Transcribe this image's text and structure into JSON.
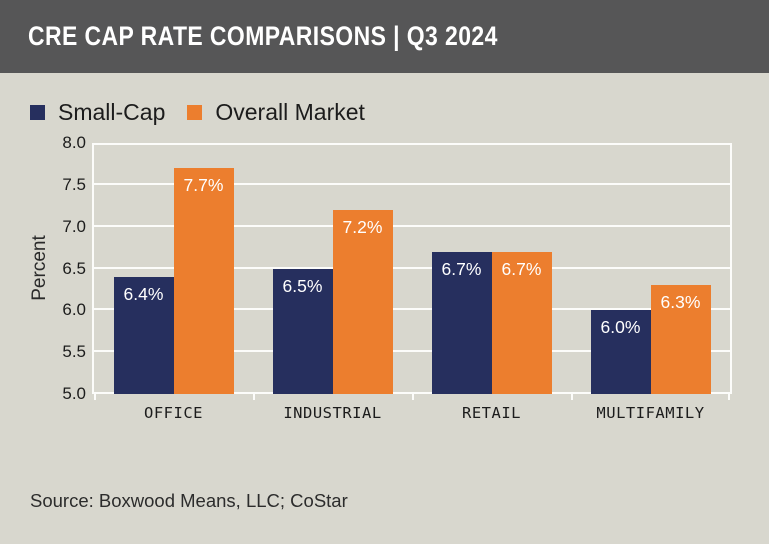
{
  "header": {
    "title": "CRE CAP RATE COMPARISONS | Q3 2024"
  },
  "legend": [
    {
      "label": "Small-Cap",
      "color": "#262f5e"
    },
    {
      "label": "Overall Market",
      "color": "#ec7e2e"
    }
  ],
  "chart_data": {
    "type": "bar",
    "title": "CRE Cap Rate Comparisons | Q3 2024",
    "categories": [
      "OFFICE",
      "INDUSTRIAL",
      "RETAIL",
      "MULTIFAMILY"
    ],
    "series": [
      {
        "name": "Small-Cap",
        "color": "#262f5e",
        "values": [
          6.4,
          6.5,
          6.7,
          6.0
        ],
        "labels": [
          "6.4%",
          "6.5%",
          "6.7%",
          "6.0%"
        ]
      },
      {
        "name": "Overall Market",
        "color": "#ec7e2e",
        "values": [
          7.7,
          7.2,
          6.7,
          6.3
        ],
        "labels": [
          "7.7%",
          "7.2%",
          "6.7%",
          "6.3%"
        ]
      }
    ],
    "xlabel": "",
    "ylabel": "Percent",
    "ylim": [
      5.0,
      8.0
    ],
    "yticks": [
      5.0,
      5.5,
      6.0,
      6.5,
      7.0,
      7.5,
      8.0
    ],
    "grid": true,
    "legend_position": "top-left"
  },
  "source": {
    "text": "Source: Boxwood Means, LLC; CoStar"
  },
  "colors": {
    "background": "#d8d7ce",
    "header_bar": "#565657",
    "title_text": "#ffffff",
    "grid_line": "#fcfcfa",
    "small_cap": "#262f5e",
    "overall_market": "#ec7e2e",
    "body_text": "#1c1c1c"
  }
}
